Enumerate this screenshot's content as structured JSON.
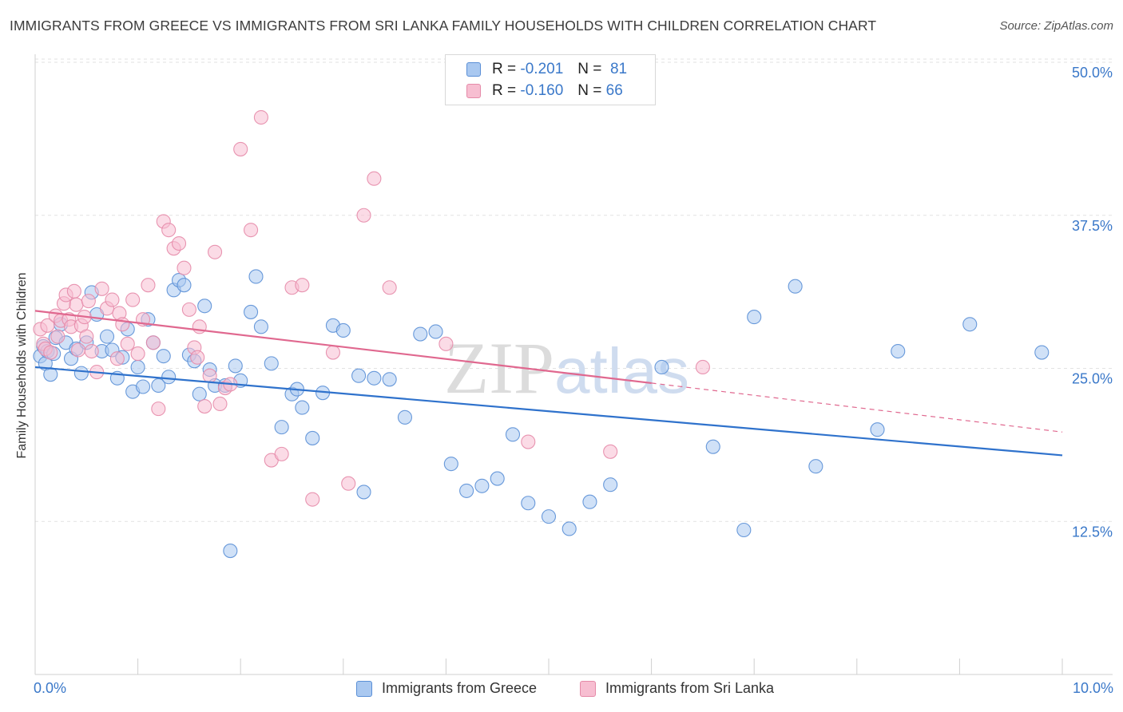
{
  "header": {
    "title": "IMMIGRANTS FROM GREECE VS IMMIGRANTS FROM SRI LANKA FAMILY HOUSEHOLDS WITH CHILDREN CORRELATION CHART",
    "source": "Source: ZipAtlas.com"
  },
  "watermark": {
    "zip": "ZIP",
    "atlas": "atlas"
  },
  "colors": {
    "greece_fill": "#a9c8f0",
    "greece_stroke": "#5a8fd6",
    "greece_line": "#2f72cc",
    "srilanka_fill": "#f7bed1",
    "srilanka_stroke": "#e58aa8",
    "srilanka_line": "#e0688f",
    "tick_label": "#3a78c9",
    "grid": "#e2e2e2"
  },
  "legend_top": {
    "rows": [
      {
        "r_label": "R =",
        "r_value": "-0.201",
        "n_label": "N =",
        "n_value": "81"
      },
      {
        "r_label": "R =",
        "r_value": "-0.160",
        "n_label": "N =",
        "n_value": "66"
      }
    ]
  },
  "chart_data": {
    "type": "scatter",
    "title": "IMMIGRANTS FROM GREECE VS IMMIGRANTS FROM SRI LANKA FAMILY HOUSEHOLDS WITH CHILDREN CORRELATION CHART",
    "ylabel": "Family Households with Children",
    "xlabel": "",
    "xlim": [
      0,
      10
    ],
    "ylim": [
      0,
      50
    ],
    "x_tick_labels": [
      "0.0%",
      "10.0%"
    ],
    "y_ticks": [
      12.5,
      25.0,
      37.5,
      50.0
    ],
    "y_tick_labels": [
      "12.5%",
      "25.0%",
      "37.5%",
      "50.0%"
    ],
    "grid": true,
    "legend_position": "top-center",
    "series": [
      {
        "name": "Immigrants from Greece",
        "r": -0.201,
        "n": 81,
        "trend": {
          "x": [
            0,
            10
          ],
          "y": [
            25.1,
            17.9
          ]
        },
        "points": [
          [
            0.05,
            26.0
          ],
          [
            0.08,
            26.8
          ],
          [
            0.1,
            25.4
          ],
          [
            0.12,
            26.4
          ],
          [
            0.15,
            24.5
          ],
          [
            0.18,
            26.2
          ],
          [
            0.2,
            27.5
          ],
          [
            0.25,
            28.6
          ],
          [
            0.3,
            27.1
          ],
          [
            0.35,
            25.8
          ],
          [
            0.4,
            26.6
          ],
          [
            0.45,
            24.6
          ],
          [
            0.5,
            27.1
          ],
          [
            0.55,
            31.2
          ],
          [
            0.6,
            29.4
          ],
          [
            0.65,
            26.4
          ],
          [
            0.7,
            27.6
          ],
          [
            0.75,
            26.5
          ],
          [
            0.8,
            24.2
          ],
          [
            0.85,
            25.9
          ],
          [
            0.9,
            28.2
          ],
          [
            0.95,
            23.1
          ],
          [
            1.0,
            25.1
          ],
          [
            1.05,
            23.5
          ],
          [
            1.1,
            29.0
          ],
          [
            1.15,
            27.1
          ],
          [
            1.2,
            23.6
          ],
          [
            1.25,
            26.0
          ],
          [
            1.3,
            24.3
          ],
          [
            1.35,
            31.4
          ],
          [
            1.4,
            32.2
          ],
          [
            1.45,
            31.8
          ],
          [
            1.5,
            26.1
          ],
          [
            1.55,
            25.6
          ],
          [
            1.6,
            22.9
          ],
          [
            1.65,
            30.1
          ],
          [
            1.7,
            24.9
          ],
          [
            1.75,
            23.6
          ],
          [
            1.85,
            23.6
          ],
          [
            1.95,
            25.2
          ],
          [
            2.0,
            24.0
          ],
          [
            2.1,
            29.6
          ],
          [
            2.2,
            28.4
          ],
          [
            2.3,
            25.4
          ],
          [
            2.4,
            20.2
          ],
          [
            2.5,
            22.9
          ],
          [
            2.55,
            23.3
          ],
          [
            2.6,
            21.8
          ],
          [
            2.7,
            19.3
          ],
          [
            2.8,
            23.0
          ],
          [
            2.9,
            28.5
          ],
          [
            3.0,
            28.1
          ],
          [
            3.15,
            24.4
          ],
          [
            3.3,
            24.2
          ],
          [
            3.45,
            24.1
          ],
          [
            3.6,
            21.0
          ],
          [
            3.75,
            27.8
          ],
          [
            3.9,
            28.0
          ],
          [
            4.05,
            17.2
          ],
          [
            4.2,
            15.0
          ],
          [
            4.35,
            15.4
          ],
          [
            4.5,
            16.0
          ],
          [
            4.65,
            19.6
          ],
          [
            4.8,
            14.0
          ],
          [
            5.0,
            12.9
          ],
          [
            5.2,
            11.9
          ],
          [
            5.4,
            14.1
          ],
          [
            5.6,
            15.5
          ],
          [
            6.1,
            25.1
          ],
          [
            6.6,
            18.6
          ],
          [
            6.9,
            11.8
          ],
          [
            7.0,
            29.2
          ],
          [
            7.4,
            31.7
          ],
          [
            7.6,
            17.0
          ],
          [
            8.2,
            20.0
          ],
          [
            8.4,
            26.4
          ],
          [
            9.1,
            28.6
          ],
          [
            9.8,
            26.3
          ],
          [
            1.9,
            10.1
          ],
          [
            3.2,
            14.9
          ],
          [
            2.15,
            32.5
          ]
        ]
      },
      {
        "name": "Immigrants from Sri Lanka",
        "r": -0.16,
        "n": 66,
        "trend": {
          "x": [
            0,
            6.0
          ],
          "y": [
            29.7,
            23.8
          ]
        },
        "trend_dashed": {
          "x": [
            6.0,
            10
          ],
          "y": [
            23.8,
            19.8
          ]
        },
        "points": [
          [
            0.05,
            28.2
          ],
          [
            0.08,
            27.0
          ],
          [
            0.1,
            26.6
          ],
          [
            0.12,
            28.5
          ],
          [
            0.15,
            26.3
          ],
          [
            0.2,
            29.3
          ],
          [
            0.22,
            27.6
          ],
          [
            0.25,
            28.9
          ],
          [
            0.28,
            30.3
          ],
          [
            0.3,
            31.0
          ],
          [
            0.33,
            29.0
          ],
          [
            0.35,
            28.4
          ],
          [
            0.38,
            31.3
          ],
          [
            0.4,
            30.2
          ],
          [
            0.42,
            26.5
          ],
          [
            0.45,
            28.5
          ],
          [
            0.48,
            29.2
          ],
          [
            0.5,
            27.6
          ],
          [
            0.52,
            30.5
          ],
          [
            0.55,
            26.4
          ],
          [
            0.6,
            24.7
          ],
          [
            0.65,
            31.5
          ],
          [
            0.7,
            29.9
          ],
          [
            0.75,
            30.6
          ],
          [
            0.8,
            25.8
          ],
          [
            0.82,
            29.5
          ],
          [
            0.85,
            28.6
          ],
          [
            0.9,
            27.0
          ],
          [
            0.95,
            30.6
          ],
          [
            1.0,
            26.2
          ],
          [
            1.05,
            29.0
          ],
          [
            1.1,
            31.8
          ],
          [
            1.15,
            27.1
          ],
          [
            1.2,
            21.7
          ],
          [
            1.25,
            37.0
          ],
          [
            1.3,
            36.3
          ],
          [
            1.35,
            34.8
          ],
          [
            1.4,
            35.2
          ],
          [
            1.45,
            33.2
          ],
          [
            1.5,
            29.8
          ],
          [
            1.55,
            26.7
          ],
          [
            1.6,
            28.4
          ],
          [
            1.65,
            21.9
          ],
          [
            1.7,
            24.4
          ],
          [
            1.75,
            34.5
          ],
          [
            1.8,
            22.1
          ],
          [
            1.85,
            23.4
          ],
          [
            1.9,
            23.7
          ],
          [
            2.0,
            42.9
          ],
          [
            2.1,
            36.3
          ],
          [
            2.2,
            45.5
          ],
          [
            2.3,
            17.5
          ],
          [
            2.4,
            18.0
          ],
          [
            2.5,
            31.6
          ],
          [
            2.6,
            31.8
          ],
          [
            2.7,
            14.3
          ],
          [
            2.9,
            26.3
          ],
          [
            3.05,
            15.6
          ],
          [
            3.2,
            37.5
          ],
          [
            3.3,
            40.5
          ],
          [
            3.45,
            31.6
          ],
          [
            4.0,
            27.0
          ],
          [
            4.8,
            19.0
          ],
          [
            5.6,
            18.2
          ],
          [
            6.5,
            25.1
          ],
          [
            1.58,
            25.9
          ]
        ]
      }
    ]
  },
  "legend_bottom": {
    "items": [
      "Immigrants from Greece",
      "Immigrants from Sri Lanka"
    ]
  }
}
